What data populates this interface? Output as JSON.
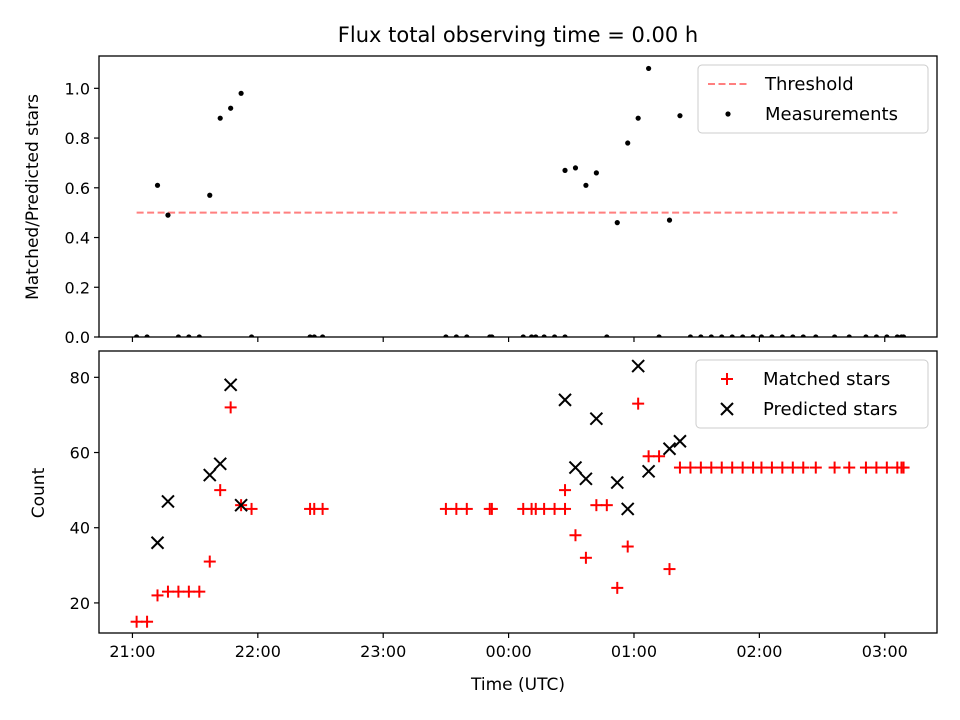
{
  "chart_data": [
    {
      "type": "scatter",
      "title": "Flux total observing time = 0.00 h",
      "xlabel": "",
      "ylabel": "Matched/Predicted stars",
      "xlim": [
        "20:44",
        "03:25"
      ],
      "ylim": [
        0.0,
        1.13
      ],
      "x_ticks": [
        "21:00",
        "22:00",
        "23:00",
        "00:00",
        "01:00",
        "02:00",
        "03:00"
      ],
      "x_tick_labels_shown": false,
      "y_ticks": [
        "0.0",
        "0.2",
        "0.4",
        "0.6",
        "0.8",
        "1.0"
      ],
      "grid": false,
      "legend": {
        "placement": "top-right",
        "entries": [
          "Threshold",
          "Measurements"
        ]
      },
      "series": [
        {
          "name": "Threshold",
          "style": "dashed-line",
          "color": "#ff7f7f",
          "points": [
            [
              "21:02",
              0.5
            ],
            [
              "03:06",
              0.5
            ]
          ]
        },
        {
          "name": "Measurements",
          "style": "dot",
          "color": "#000000",
          "points": [
            [
              "21:02",
              0.0
            ],
            [
              "21:07",
              0.0
            ],
            [
              "21:12",
              0.61
            ],
            [
              "21:17",
              0.49
            ],
            [
              "21:22",
              0.0
            ],
            [
              "21:27",
              0.0
            ],
            [
              "21:32",
              0.0
            ],
            [
              "21:37",
              0.57
            ],
            [
              "21:42",
              0.88
            ],
            [
              "21:47",
              0.92
            ],
            [
              "21:52",
              0.98
            ],
            [
              "21:57",
              0.0
            ],
            [
              "22:25",
              0.0
            ],
            [
              "22:27",
              0.0
            ],
            [
              "22:31",
              0.0
            ],
            [
              "23:30",
              0.0
            ],
            [
              "23:35",
              0.0
            ],
            [
              "23:40",
              0.0
            ],
            [
              "23:51",
              0.0
            ],
            [
              "23:52",
              0.0
            ],
            [
              "00:07",
              0.0
            ],
            [
              "00:11",
              0.0
            ],
            [
              "00:13",
              0.0
            ],
            [
              "00:17",
              0.0
            ],
            [
              "00:22",
              0.0
            ],
            [
              "00:27",
              0.0
            ],
            [
              "00:27",
              0.67
            ],
            [
              "00:32",
              0.68
            ],
            [
              "00:37",
              0.61
            ],
            [
              "00:42",
              0.66
            ],
            [
              "00:47",
              0.0
            ],
            [
              "00:52",
              0.46
            ],
            [
              "00:57",
              0.78
            ],
            [
              "01:02",
              0.88
            ],
            [
              "01:07",
              1.08
            ],
            [
              "01:12",
              0.0
            ],
            [
              "01:17",
              0.47
            ],
            [
              "01:22",
              0.89
            ],
            [
              "01:27",
              0.0
            ],
            [
              "01:32",
              0.0
            ],
            [
              "01:37",
              0.0
            ],
            [
              "01:42",
              0.0
            ],
            [
              "01:47",
              0.0
            ],
            [
              "01:52",
              0.0
            ],
            [
              "01:57",
              0.0
            ],
            [
              "02:01",
              0.0
            ],
            [
              "02:06",
              0.0
            ],
            [
              "02:11",
              0.0
            ],
            [
              "02:16",
              0.0
            ],
            [
              "02:21",
              0.0
            ],
            [
              "02:27",
              0.0
            ],
            [
              "02:36",
              0.0
            ],
            [
              "02:43",
              0.0
            ],
            [
              "02:51",
              0.0
            ],
            [
              "02:56",
              0.0
            ],
            [
              "03:01",
              0.0
            ],
            [
              "03:06",
              0.0
            ],
            [
              "03:08",
              0.0
            ],
            [
              "03:09",
              0.0
            ]
          ]
        }
      ]
    },
    {
      "type": "scatter",
      "title": "",
      "xlabel": "Time (UTC)",
      "ylabel": "Count",
      "xlim": [
        "20:44",
        "03:25"
      ],
      "ylim": [
        12,
        87
      ],
      "x_ticks": [
        "21:00",
        "22:00",
        "23:00",
        "00:00",
        "01:00",
        "02:00",
        "03:00"
      ],
      "y_ticks": [
        "20",
        "40",
        "60",
        "80"
      ],
      "grid": false,
      "legend": {
        "placement": "top-right",
        "entries": [
          "Matched stars",
          "Predicted stars"
        ]
      },
      "series": [
        {
          "name": "Matched stars",
          "style": "plus",
          "color": "#ff0000",
          "points": [
            [
              "21:02",
              15
            ],
            [
              "21:07",
              15
            ],
            [
              "21:12",
              22
            ],
            [
              "21:17",
              23
            ],
            [
              "21:22",
              23
            ],
            [
              "21:27",
              23
            ],
            [
              "21:32",
              23
            ],
            [
              "21:37",
              31
            ],
            [
              "21:42",
              50
            ],
            [
              "21:47",
              72
            ],
            [
              "21:52",
              46
            ],
            [
              "21:57",
              45
            ],
            [
              "22:25",
              45
            ],
            [
              "22:27",
              45
            ],
            [
              "22:31",
              45
            ],
            [
              "23:30",
              45
            ],
            [
              "23:35",
              45
            ],
            [
              "23:40",
              45
            ],
            [
              "23:51",
              45
            ],
            [
              "23:52",
              45
            ],
            [
              "00:07",
              45
            ],
            [
              "00:11",
              45
            ],
            [
              "00:13",
              45
            ],
            [
              "00:17",
              45
            ],
            [
              "00:22",
              45
            ],
            [
              "00:27",
              45
            ],
            [
              "00:27",
              50
            ],
            [
              "00:32",
              38
            ],
            [
              "00:37",
              32
            ],
            [
              "00:42",
              46
            ],
            [
              "00:47",
              46
            ],
            [
              "00:52",
              24
            ],
            [
              "00:57",
              35
            ],
            [
              "01:02",
              73
            ],
            [
              "01:07",
              59
            ],
            [
              "01:12",
              59
            ],
            [
              "01:17",
              29
            ],
            [
              "01:22",
              56
            ],
            [
              "01:27",
              56
            ],
            [
              "01:32",
              56
            ],
            [
              "01:37",
              56
            ],
            [
              "01:42",
              56
            ],
            [
              "01:47",
              56
            ],
            [
              "01:52",
              56
            ],
            [
              "01:57",
              56
            ],
            [
              "02:01",
              56
            ],
            [
              "02:06",
              56
            ],
            [
              "02:11",
              56
            ],
            [
              "02:16",
              56
            ],
            [
              "02:21",
              56
            ],
            [
              "02:27",
              56
            ],
            [
              "02:36",
              56
            ],
            [
              "02:43",
              56
            ],
            [
              "02:51",
              56
            ],
            [
              "02:56",
              56
            ],
            [
              "03:01",
              56
            ],
            [
              "03:06",
              56
            ],
            [
              "03:08",
              56
            ],
            [
              "03:09",
              56
            ]
          ]
        },
        {
          "name": "Predicted stars",
          "style": "x",
          "color": "#000000",
          "points": [
            [
              "21:12",
              36
            ],
            [
              "21:17",
              47
            ],
            [
              "21:37",
              54
            ],
            [
              "21:42",
              57
            ],
            [
              "21:47",
              78
            ],
            [
              "21:52",
              46
            ],
            [
              "00:27",
              74
            ],
            [
              "00:32",
              56
            ],
            [
              "00:37",
              53
            ],
            [
              "00:42",
              69
            ],
            [
              "00:52",
              52
            ],
            [
              "00:57",
              45
            ],
            [
              "01:02",
              83
            ],
            [
              "01:07",
              55
            ],
            [
              "01:17",
              61
            ],
            [
              "01:22",
              63
            ]
          ]
        }
      ]
    }
  ]
}
